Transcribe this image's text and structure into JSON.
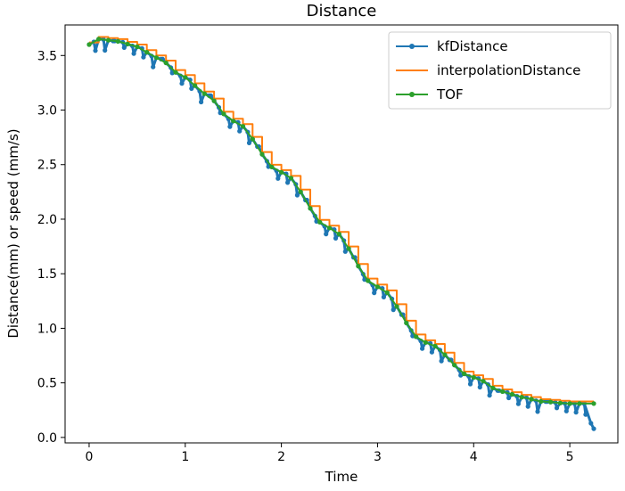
{
  "chart_data": {
    "type": "line",
    "title": "Distance",
    "xlabel": "Time",
    "ylabel": "Distance(mm) or speed (mm/s)",
    "xlim": [
      -0.25,
      5.5
    ],
    "ylim": [
      -0.05,
      3.78
    ],
    "x_ticks": [
      0,
      1,
      2,
      3,
      4,
      5
    ],
    "y_ticks": [
      0.0,
      0.5,
      1.0,
      1.5,
      2.0,
      2.5,
      3.0,
      3.5
    ],
    "x_tick_labels": [
      "0",
      "1",
      "2",
      "3",
      "4",
      "5"
    ],
    "y_tick_labels": [
      "0.0",
      "0.5",
      "1.0",
      "1.5",
      "2.0",
      "2.5",
      "3.0",
      "3.5"
    ],
    "grid": false,
    "legend_position": "upper-right",
    "series": [
      {
        "name": "kfDistance",
        "color": "#1f77b4",
        "marker": "dot",
        "style": "sawtooth",
        "t_start": 0.0,
        "t_end": 5.25,
        "t_step": 0.05,
        "drop_every_n": 2,
        "drop_offsets": [
          0.0,
          -0.08,
          -0.05,
          -0.1,
          -0.07
        ],
        "tail": [
          [
            5.15,
            0.31
          ],
          [
            5.22,
            0.13
          ],
          [
            5.25,
            0.08
          ]
        ]
      },
      {
        "name": "interpolationDistance",
        "color": "#ff7f0e",
        "marker": "none",
        "style": "step",
        "t_start": 0.0,
        "t_end": 5.25,
        "step_width": 0.1
      },
      {
        "name": "TOF",
        "color": "#2ca02c",
        "marker": "dot",
        "style": "smooth",
        "t_start": 0.0,
        "t_end": 5.25,
        "t_step": 0.1,
        "last_point": [
          5.25,
          0.31
        ]
      }
    ],
    "trend": {
      "knots_x": [
        0.0,
        0.1,
        0.3,
        0.5,
        0.7,
        1.0,
        1.2,
        1.5,
        2.0,
        2.5,
        3.0,
        3.5,
        4.0,
        4.3,
        4.5,
        4.7,
        5.0,
        5.25
      ],
      "knots_y": [
        3.6,
        3.65,
        3.63,
        3.58,
        3.48,
        3.3,
        3.15,
        2.9,
        2.43,
        1.92,
        1.38,
        0.87,
        0.55,
        0.42,
        0.37,
        0.33,
        0.31,
        0.31
      ]
    }
  }
}
